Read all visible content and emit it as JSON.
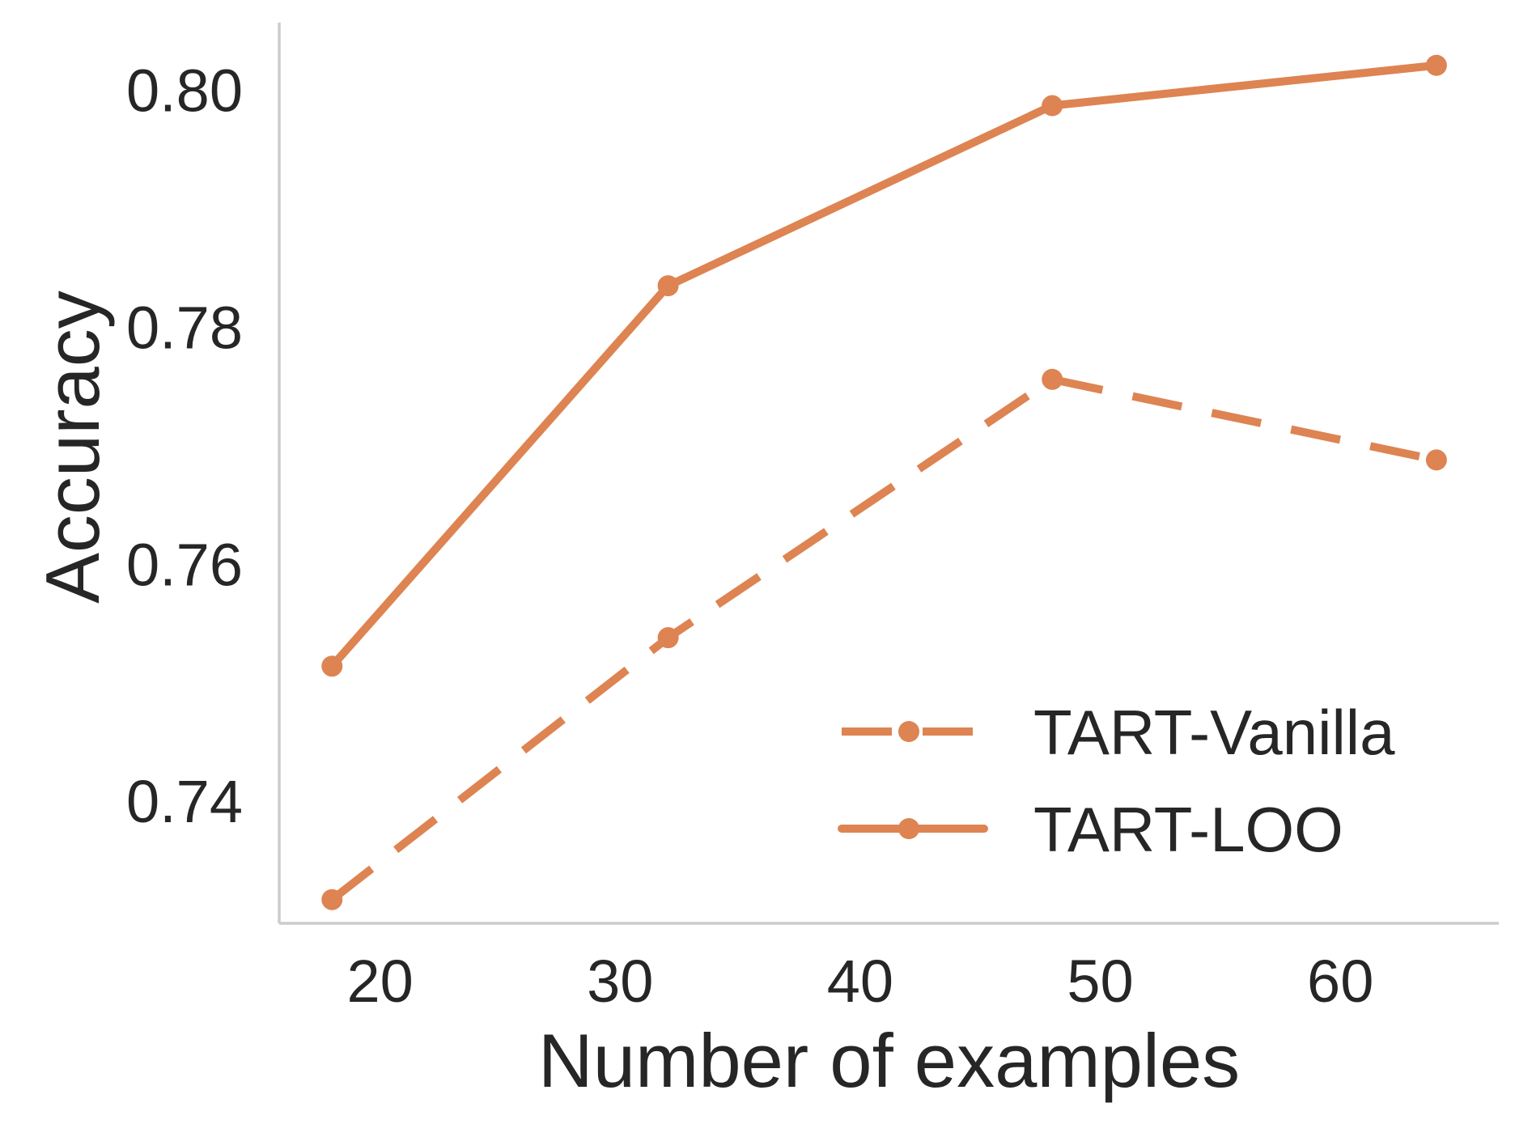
{
  "chart_data": {
    "type": "line",
    "title": "",
    "xlabel": "Number of examples",
    "ylabel": "Accuracy",
    "x_ticks": [
      20,
      30,
      40,
      50,
      60
    ],
    "x_tick_labels": [
      "20",
      "30",
      "40",
      "50",
      "60"
    ],
    "y_ticks": [
      0.74,
      0.76,
      0.78,
      0.8
    ],
    "y_tick_labels": [
      "0.74",
      "0.76",
      "0.78",
      "0.80"
    ],
    "xlim": [
      15.8,
      66.6
    ],
    "ylim": [
      0.7297,
      0.8057
    ],
    "grid": false,
    "legend_position": "lower-right",
    "series": [
      {
        "name": "TART-Vanilla",
        "style": "dashed",
        "x": [
          18,
          32,
          48,
          64
        ],
        "y": [
          0.7317,
          0.7538,
          0.7756,
          0.7688
        ],
        "color": "#dd8452"
      },
      {
        "name": "TART-LOO",
        "style": "solid",
        "x": [
          18,
          32,
          48,
          64
        ],
        "y": [
          0.7514,
          0.7835,
          0.7987,
          0.8021
        ],
        "color": "#dd8452"
      }
    ]
  },
  "colors": {
    "series": "#dd8452",
    "spine": "#cccccc",
    "text": "#262626",
    "background": "#ffffff"
  }
}
